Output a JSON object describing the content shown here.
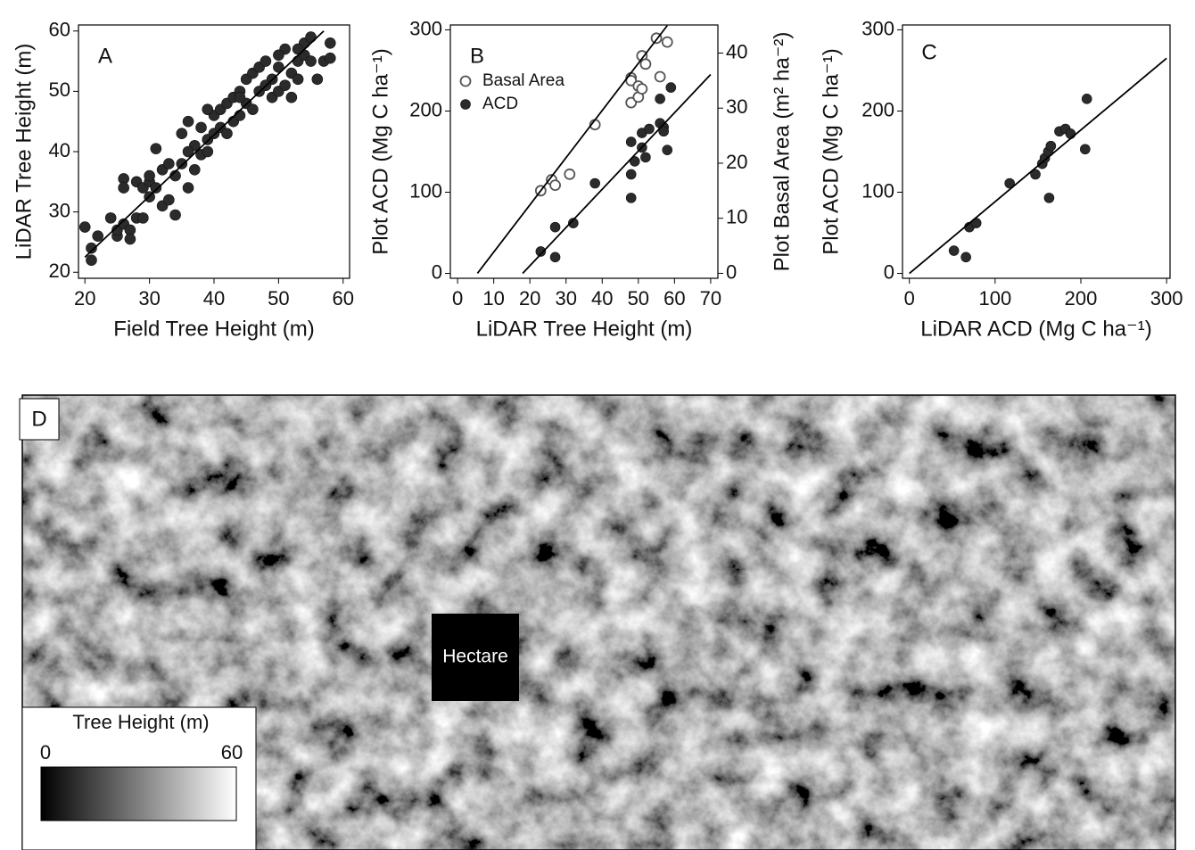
{
  "chart_data": [
    {
      "type": "scatter",
      "panel_label": "A",
      "x_label": "Field Tree Height (m)",
      "y_label": "LiDAR Tree Height (m)",
      "xlim": [
        19,
        61
      ],
      "ylim": [
        19,
        61
      ],
      "xticks": [
        20,
        30,
        40,
        50,
        60
      ],
      "yticks": [
        20,
        30,
        40,
        50,
        60
      ],
      "series": [
        {
          "style": "filled",
          "color": "#2b2b2b",
          "x": [
            20,
            21,
            21,
            22,
            24,
            25,
            25,
            26,
            26,
            27,
            27,
            28,
            28,
            29,
            29,
            30,
            30,
            31,
            31,
            32,
            32,
            33,
            33,
            34,
            34,
            35,
            35,
            36,
            36,
            37,
            37,
            38,
            38,
            39,
            39,
            40,
            40,
            41,
            41,
            42,
            42,
            43,
            43,
            44,
            44,
            45,
            45,
            46,
            46,
            47,
            47,
            48,
            48,
            49,
            49,
            50,
            50,
            51,
            51,
            52,
            52,
            53,
            53,
            54,
            54,
            55,
            55,
            56,
            57,
            58,
            58,
            26,
            30,
            36,
            39,
            44,
            48,
            50,
            53
          ],
          "values": [
            27.5,
            24,
            22,
            26,
            29,
            26,
            27,
            35.5,
            28,
            27,
            25.5,
            35,
            29,
            29,
            34,
            32.5,
            35,
            34,
            40.5,
            37,
            31,
            38,
            32,
            36,
            29.5,
            38,
            43,
            45,
            34,
            37,
            41,
            44,
            39.5,
            40,
            42,
            43,
            46,
            47,
            44,
            43,
            48,
            49,
            45,
            50,
            46,
            52,
            48,
            47,
            53,
            54,
            50,
            51,
            55,
            49,
            52,
            54,
            50,
            51,
            57,
            53,
            49,
            55,
            52,
            58,
            56,
            55,
            59,
            52,
            55,
            58,
            55.5,
            34,
            36,
            40,
            47,
            49,
            51,
            56,
            57
          ]
        },
        {
          "style": "line",
          "color": "#000000",
          "x": [
            20,
            57
          ],
          "values": [
            22.5,
            60
          ]
        }
      ]
    },
    {
      "type": "scatter",
      "panel_label": "B",
      "x_label": "LiDAR Tree Height (m)",
      "y_label": "Plot ACD (Mg C ha⁻¹)",
      "y2_label": "Plot Basal Area (m² ha⁻²)",
      "xlim": [
        -2,
        72
      ],
      "ylim": [
        -6,
        306
      ],
      "y2lim": [
        -0.9,
        45.1
      ],
      "xticks": [
        0,
        10,
        20,
        30,
        40,
        50,
        60,
        70
      ],
      "yticks": [
        0,
        100,
        200,
        300
      ],
      "y2ticks": [
        0,
        10,
        20,
        30,
        40
      ],
      "legend": "upper left",
      "series": [
        {
          "name": "Basal Area",
          "style": "open",
          "color": "#555555",
          "axis": "y2",
          "x": [
            23,
            26,
            27,
            31,
            38,
            48,
            48,
            48,
            50,
            50,
            51,
            51,
            52,
            55,
            56,
            58
          ],
          "values": [
            15,
            17,
            16,
            18,
            27,
            35.5,
            31,
            35,
            32,
            34,
            33.5,
            39.5,
            38,
            42.7,
            35.7,
            42
          ]
        },
        {
          "name": "ACD",
          "style": "filled",
          "color": "#2b2b2b",
          "x": [
            23,
            27,
            27,
            32,
            38,
            48,
            48,
            48,
            49,
            51,
            51,
            52,
            53,
            56,
            57,
            57,
            58,
            59,
            56
          ],
          "values": [
            27,
            57,
            20,
            62,
            111,
            93,
            162,
            122,
            138,
            155,
            173,
            143,
            178,
            185,
            180,
            175,
            152,
            229,
            215
          ]
        },
        {
          "style": "line",
          "color": "#000000",
          "axis": "y2",
          "x": [
            5.5,
            58
          ],
          "values": [
            0,
            45
          ]
        },
        {
          "style": "line",
          "color": "#000000",
          "x": [
            18,
            70
          ],
          "values": [
            0,
            245
          ]
        }
      ]
    },
    {
      "type": "scatter",
      "panel_label": "C",
      "x_label": "LiDAR ACD (Mg C ha⁻¹)",
      "y_label": "Plot ACD (Mg C ha⁻¹)",
      "xlim": [
        -8,
        304
      ],
      "ylim": [
        -6,
        306
      ],
      "xticks": [
        0,
        100,
        200,
        300
      ],
      "yticks": [
        0,
        100,
        200,
        300
      ],
      "series": [
        {
          "style": "filled",
          "color": "#2b2b2b",
          "x": [
            52,
            66,
            70,
            78,
            117,
            147,
            155,
            158,
            162,
            163,
            165,
            175,
            182,
            188,
            205,
            207
          ],
          "values": [
            28,
            20,
            57,
            62,
            111,
            122,
            135,
            142,
            150,
            93,
            157,
            175,
            178,
            172,
            153,
            215
          ]
        },
        {
          "style": "line",
          "color": "#000000",
          "x": [
            0,
            300
          ],
          "values": [
            0,
            265
          ]
        }
      ]
    }
  ],
  "panel_d": {
    "panel_label": "D",
    "plot_label": "Hectare",
    "colorbar": {
      "title": "Tree Height (m)",
      "min": 0,
      "max": 60
    }
  }
}
